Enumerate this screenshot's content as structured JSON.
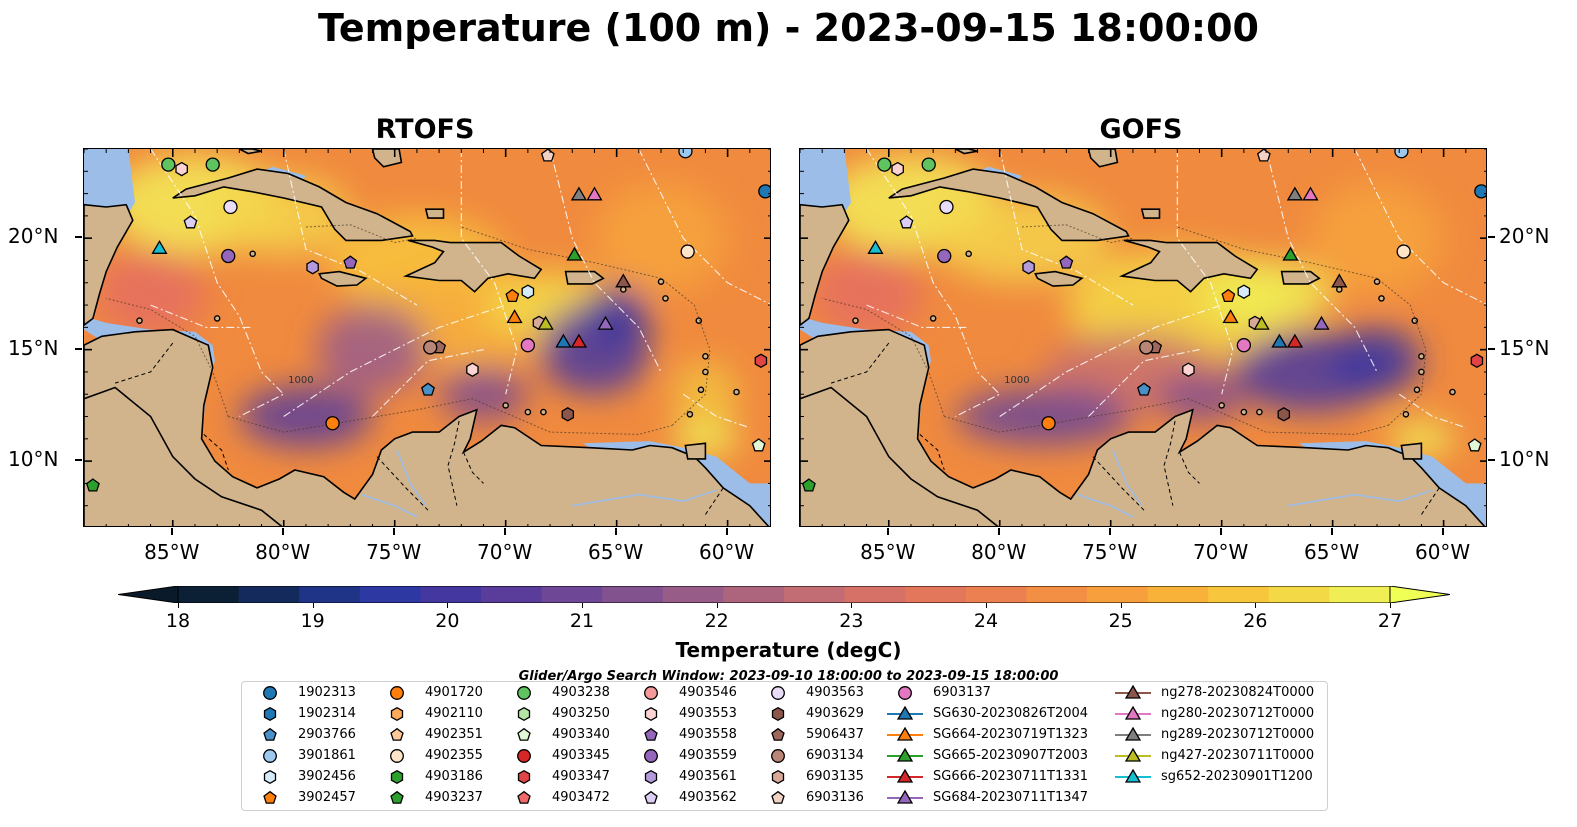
{
  "title": "Temperature (100 m) - 2023-09-15 18:00:00",
  "panels": [
    {
      "title": "RTOFS"
    },
    {
      "title": "GOFS"
    }
  ],
  "x_ticks": [
    "85°W",
    "80°W",
    "75°W",
    "70°W",
    "65°W",
    "60°W"
  ],
  "y_ticks": [
    "20°N",
    "15°N",
    "10°N"
  ],
  "colorbar": {
    "label": "Temperature (degC)",
    "ticks": [
      "18",
      "19",
      "20",
      "21",
      "22",
      "23",
      "24",
      "25",
      "26",
      "27"
    ],
    "range": [
      18,
      27
    ],
    "extend": "both",
    "colors": [
      "#0b2035",
      "#142a5c",
      "#1f3487",
      "#2e38a3",
      "#44379f",
      "#5a3d9a",
      "#6e4796",
      "#82528f",
      "#975c88",
      "#ad657e",
      "#c26c73",
      "#d57167",
      "#e3775b",
      "#ed8050",
      "#f38e45",
      "#f79e3d",
      "#f8b23a",
      "#f8c63c",
      "#f4d946",
      "#f0ee55"
    ]
  },
  "contour_labels": [
    "1000"
  ],
  "search_window": "Glider/Argo Search Window: 2023-09-10 18:00:00 to 2023-09-15 18:00:00",
  "legend": {
    "columns": [
      [
        {
          "name": "1902313",
          "marker": "circle",
          "color": "#1f77b4"
        },
        {
          "name": "1902314",
          "marker": "hexagon",
          "color": "#1f77b4"
        },
        {
          "name": "2903766",
          "marker": "pentagon",
          "color": "#4a90c8"
        },
        {
          "name": "3901861",
          "marker": "circle",
          "color": "#9ec9ee"
        },
        {
          "name": "3902456",
          "marker": "hexagon",
          "color": "#d6ebfa"
        },
        {
          "name": "3902457",
          "marker": "pentagon",
          "color": "#ff7f0e"
        }
      ],
      [
        {
          "name": "4901720",
          "marker": "circle",
          "color": "#ff7f0e"
        },
        {
          "name": "4902110",
          "marker": "hexagon",
          "color": "#ffa95a"
        },
        {
          "name": "4902351",
          "marker": "pentagon",
          "color": "#ffc99a"
        },
        {
          "name": "4902355",
          "marker": "circle",
          "color": "#ffe4c8"
        },
        {
          "name": "4903186",
          "marker": "hexagon",
          "color": "#2ca02c"
        },
        {
          "name": "4903237",
          "marker": "pentagon",
          "color": "#2ca02c"
        }
      ],
      [
        {
          "name": "4903238",
          "marker": "circle",
          "color": "#5fc35f"
        },
        {
          "name": "4903250",
          "marker": "hexagon",
          "color": "#b6e6a6"
        },
        {
          "name": "4903340",
          "marker": "pentagon",
          "color": "#e2f7d6"
        },
        {
          "name": "4903345",
          "marker": "circle",
          "color": "#d62728"
        },
        {
          "name": "4903347",
          "marker": "hexagon",
          "color": "#e04444"
        },
        {
          "name": "4903472",
          "marker": "pentagon",
          "color": "#f06a6a"
        }
      ],
      [
        {
          "name": "4903546",
          "marker": "circle",
          "color": "#f59a9a"
        },
        {
          "name": "4903553",
          "marker": "hexagon",
          "color": "#fcd3d3"
        },
        {
          "name": "4903558",
          "marker": "pentagon",
          "color": "#9467bd"
        },
        {
          "name": "4903559",
          "marker": "circle",
          "color": "#9467bd"
        },
        {
          "name": "4903561",
          "marker": "hexagon",
          "color": "#b49adb"
        },
        {
          "name": "4903562",
          "marker": "pentagon",
          "color": "#dccdf2"
        }
      ],
      [
        {
          "name": "4903563",
          "marker": "circle",
          "color": "#e9dcf7"
        },
        {
          "name": "4903629",
          "marker": "hexagon",
          "color": "#8c564b"
        },
        {
          "name": "5906437",
          "marker": "pentagon",
          "color": "#a0685c"
        },
        {
          "name": "6903134",
          "marker": "circle",
          "color": "#b98576"
        },
        {
          "name": "6903135",
          "marker": "hexagon",
          "color": "#d8a99a"
        },
        {
          "name": "6903136",
          "marker": "pentagon",
          "color": "#f3d2c6"
        }
      ],
      [
        {
          "name": "6903137",
          "marker": "circle",
          "color": "#e377c2"
        },
        {
          "name": "SG630-20230826T2004",
          "marker": "triangle",
          "color": "#1f77b4"
        },
        {
          "name": "SG664-20230719T1323",
          "marker": "triangle",
          "color": "#ff7f0e"
        },
        {
          "name": "SG665-20230907T2003",
          "marker": "triangle",
          "color": "#2ca02c"
        },
        {
          "name": "SG666-20230711T1331",
          "marker": "triangle",
          "color": "#d62728"
        },
        {
          "name": "SG684-20230711T1347",
          "marker": "triangle",
          "color": "#9467bd"
        }
      ],
      [
        {
          "name": "ng278-20230824T0000",
          "marker": "triangle",
          "color": "#8c564b"
        },
        {
          "name": "ng280-20230712T0000",
          "marker": "triangle",
          "color": "#e377c2"
        },
        {
          "name": "ng289-20230712T0000",
          "marker": "triangle",
          "color": "#7f7f7f"
        },
        {
          "name": "ng427-20230711T0000",
          "marker": "triangle",
          "color": "#bcbd22"
        },
        {
          "name": "sg652-20230901T1200",
          "marker": "triangle",
          "color": "#17becf"
        }
      ]
    ]
  },
  "chart_data": [
    {
      "type": "heatmap",
      "title": "RTOFS",
      "variable": "Temperature (100 m)",
      "units": "degC",
      "xlim": [
        -89,
        -58
      ],
      "ylim": [
        7,
        24
      ],
      "xticks": [
        -85,
        -80,
        -75,
        -70,
        -65,
        -60
      ],
      "yticks": [
        10,
        15,
        20
      ],
      "observations": [
        {
          "name": "1902313",
          "lon": -58.3,
          "lat": 22.1
        },
        {
          "name": "2903766",
          "lon": -73.5,
          "lat": 13.2
        },
        {
          "name": "3901861",
          "lon": -61.9,
          "lat": 23.9
        },
        {
          "name": "3902456",
          "lon": -69.0,
          "lat": 17.6
        },
        {
          "name": "3902457",
          "lon": -69.7,
          "lat": 17.4
        },
        {
          "name": "4901720",
          "lon": -77.8,
          "lat": 11.7
        },
        {
          "name": "4902355",
          "lon": -61.8,
          "lat": 19.4
        },
        {
          "name": "4903237",
          "lon": -88.6,
          "lat": 8.9
        },
        {
          "name": "4903238",
          "lon": -85.2,
          "lat": 23.3
        },
        {
          "name": "4903238",
          "lon": -83.2,
          "lat": 23.3
        },
        {
          "name": "4903340",
          "lon": -58.6,
          "lat": 10.7
        },
        {
          "name": "4903347",
          "lon": -58.5,
          "lat": 14.5
        },
        {
          "name": "4903553",
          "lon": -71.5,
          "lat": 14.1
        },
        {
          "name": "4903553",
          "lon": -84.6,
          "lat": 23.1
        },
        {
          "name": "4903558",
          "lon": -77.0,
          "lat": 18.9
        },
        {
          "name": "4903559",
          "lon": -82.5,
          "lat": 19.2
        },
        {
          "name": "4903561",
          "lon": -78.7,
          "lat": 18.7
        },
        {
          "name": "4903562",
          "lon": -84.2,
          "lat": 20.7
        },
        {
          "name": "4903563",
          "lon": -82.4,
          "lat": 21.4
        },
        {
          "name": "4903629",
          "lon": -67.2,
          "lat": 12.1
        },
        {
          "name": "5906437",
          "lon": -73.0,
          "lat": 15.1
        },
        {
          "name": "6903134",
          "lon": -73.4,
          "lat": 15.1
        },
        {
          "name": "6903135",
          "lon": -68.5,
          "lat": 16.2
        },
        {
          "name": "6903136",
          "lon": -68.1,
          "lat": 23.7
        },
        {
          "name": "6903137",
          "lon": -69.0,
          "lat": 15.2
        },
        {
          "name": "SG630-20230826T2004",
          "lon": -67.4,
          "lat": 15.3
        },
        {
          "name": "SG664-20230719T1323",
          "lon": -69.6,
          "lat": 16.4
        },
        {
          "name": "SG665-20230907T2003",
          "lon": -66.9,
          "lat": 19.2
        },
        {
          "name": "SG666-20230711T1331",
          "lon": -66.7,
          "lat": 15.3
        },
        {
          "name": "SG684-20230711T1347",
          "lon": -65.5,
          "lat": 16.1
        },
        {
          "name": "ng278-20230824T0000",
          "lon": -64.7,
          "lat": 18.0
        },
        {
          "name": "ng280-20230712T0000",
          "lon": -66.0,
          "lat": 21.9
        },
        {
          "name": "ng289-20230712T0000",
          "lon": -66.7,
          "lat": 21.9
        },
        {
          "name": "ng427-20230711T0000",
          "lon": -68.2,
          "lat": 16.1
        },
        {
          "name": "sg652-20230901T1200",
          "lon": -85.6,
          "lat": 19.5
        }
      ]
    },
    {
      "type": "heatmap",
      "title": "GOFS",
      "variable": "Temperature (100 m)",
      "units": "degC",
      "xlim": [
        -89,
        -58
      ],
      "ylim": [
        7,
        24
      ],
      "xticks": [
        -85,
        -80,
        -75,
        -70,
        -65,
        -60
      ],
      "yticks": [
        10,
        15,
        20
      ],
      "observations": "same as RTOFS"
    }
  ]
}
